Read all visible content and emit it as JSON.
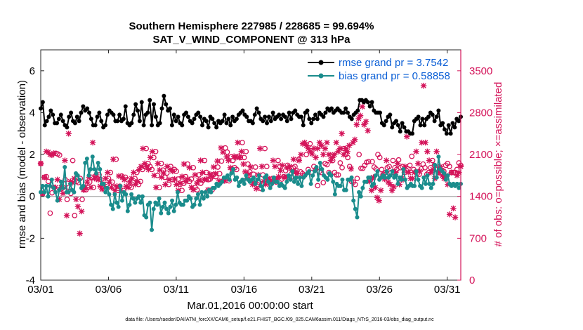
{
  "chart_data": {
    "type": "line",
    "title_line1": "Southern Hemisphere 227985 / 228685 = 99.694%",
    "title_line2": "SAT_V_WIND_COMPONENT @ 313 hPa",
    "xlabel": "Mar.01,2016 00:00:00 start",
    "ylabel_left": "rmse and bias (model - observation)",
    "ylabel_right": "# of obs: o=possible; ×=assimilated",
    "footnote": "data file: /Users/raeder/DAI/ATM_forcXX/CAM6_setup/f.e21.FHIST_BGC.f09_025.CAM6assim.011/Diags_NTrS_2016-03/obs_diag_output.nc",
    "x_ticks": [
      1,
      6,
      11,
      16,
      21,
      26,
      31
    ],
    "x_tick_labels": [
      "03/01",
      "03/06",
      "03/11",
      "03/16",
      "03/21",
      "03/26",
      "03/31"
    ],
    "xlim": [
      1,
      32
    ],
    "ylim_left": [
      -4,
      7
    ],
    "y_ticks_left": [
      "-4",
      "-2",
      "0",
      "2",
      "4",
      "6"
    ],
    "ylim_right": [
      0,
      3850
    ],
    "y_ticks_right": [
      "0",
      "700",
      "1400",
      "2100",
      "2800",
      "3500"
    ],
    "grid": false,
    "legend_position": "top-right",
    "colors": {
      "rmse": "#000000",
      "bias": "#1a8c8c",
      "obs": "#d4145a",
      "legend_text": "#0b5fd6",
      "zero": "#b4b4b4"
    },
    "series": [
      {
        "name": "rmse grand pr = 3.7542",
        "axis": "left",
        "marker": "circle",
        "values": [
          4.2,
          4.5,
          3.4,
          3.6,
          3.8,
          4.1,
          3.9,
          3.5,
          3.5,
          3.7,
          3.9,
          3.6,
          3.4,
          3.3,
          3.8,
          4.0,
          3.6,
          3.5,
          3.8,
          3.6,
          4.0,
          4.3,
          4.1,
          4.2,
          4.0,
          3.7,
          3.4,
          3.4,
          3.8,
          4.0,
          3.6,
          3.3,
          3.4,
          3.9,
          4.1,
          4.0,
          3.9,
          3.6,
          3.6,
          3.9,
          3.6,
          3.7,
          4.3,
          3.5,
          3.4,
          3.5,
          3.9,
          4.4,
          4.1,
          3.6,
          4.5,
          3.4,
          3.9,
          4.0,
          4.6,
          3.4,
          4.4,
          3.8,
          3.4,
          3.5,
          4.2,
          4.8,
          4.4,
          4.1,
          4.2,
          3.4,
          3.9,
          3.6,
          3.8,
          3.5,
          3.4,
          3.9,
          4.0,
          3.8,
          3.6,
          3.5,
          3.7,
          3.9,
          4.0,
          3.8,
          3.4,
          3.7,
          3.6,
          3.3,
          3.8,
          3.7,
          3.5,
          3.3,
          3.6,
          3.5,
          3.6,
          3.9,
          3.5,
          3.7,
          3.4,
          3.8,
          3.6,
          3.7,
          3.9,
          4.0,
          4.1,
          3.9,
          3.8,
          3.6,
          3.6,
          3.5,
          3.9,
          4.2,
          4.0,
          3.7,
          3.6,
          3.8,
          3.5,
          3.8,
          3.6,
          4.0,
          3.7,
          3.8,
          3.9,
          3.7,
          3.9,
          3.8,
          3.6,
          4.0,
          3.7,
          4.0,
          4.1,
          3.9,
          3.8,
          3.8,
          3.4,
          4.0,
          4.1,
          3.7,
          3.5,
          3.7,
          3.9,
          3.7,
          4.0,
          3.9,
          3.8,
          4.0,
          4.2,
          4.1,
          4.2,
          4.0,
          4.1,
          4.2,
          4.1,
          4.0,
          4.0,
          4.2,
          4.0,
          3.8,
          3.7,
          3.9,
          4.0,
          4.1,
          4.6,
          4.6,
          4.5,
          4.6,
          4.5,
          4.3,
          4.5,
          4.1,
          4.0,
          4.0,
          4.0,
          3.5,
          3.4,
          3.6,
          3.8,
          3.9,
          3.3,
          3.5,
          3.6,
          3.4,
          3.1,
          3.5,
          3.3,
          3.1,
          3.1,
          3.0,
          3.0,
          3.6,
          3.7,
          3.8,
          3.4,
          3.7,
          3.4,
          3.7,
          3.8,
          4.0,
          3.9,
          3.6,
          3.8,
          4.1,
          3.4,
          3.5,
          3.2,
          3.0,
          3.4,
          3.0,
          3.5,
          3.3,
          3.7,
          3.6,
          3.8
        ]
      },
      {
        "name": "bias grand pr = 0.58858",
        "axis": "left",
        "marker": "circle",
        "values": [
          0.2,
          0.5,
          0.2,
          0.5,
          0.0,
          0.5,
          0.8,
          0.4,
          0.2,
          -0.2,
          0.3,
          0.7,
          0.4,
          1.4,
          0.2,
          0.2,
          0.6,
          0.3,
          0.2,
          1.1,
          1.0,
          0.8,
          0.4,
          0.5,
          1.6,
          1.8,
          1.0,
          1.3,
          1.9,
          1.3,
          1.1,
          1.6,
          1.3,
          0.6,
          0.6,
          0.2,
          0.4,
          0.1,
          -0.4,
          -0.6,
          0.1,
          -0.3,
          -0.5,
          0.5,
          -0.2,
          0.2,
          0.1,
          -0.7,
          -0.4,
          0.1,
          -0.1,
          -0.3,
          -0.1,
          0.0,
          -0.3,
          0.0,
          -0.9,
          -1.0,
          -0.4,
          -0.3,
          -1.6,
          -0.6,
          -0.3,
          -0.4,
          -0.1,
          -0.8,
          -0.5,
          -0.3,
          -0.6,
          -0.8,
          -0.5,
          -0.2,
          -0.7,
          -0.4,
          0.2,
          -0.3,
          -0.4,
          -0.4,
          -0.2,
          -0.2,
          0.0,
          -0.1,
          -0.5,
          -0.4,
          -0.1,
          0.1,
          -0.4,
          0.2,
          -0.1,
          0.2,
          0.0,
          0.3,
          0.2,
          0.4,
          0.4,
          0.6,
          0.5,
          0.6,
          0.7,
          0.9,
          0.9,
          1.0,
          0.8,
          1.1,
          1.3,
          0.8,
          0.9,
          0.5,
          0.7,
          0.8,
          0.6,
          1.0,
          0.8,
          0.7,
          0.8,
          0.9,
          0.6,
          0.8,
          1.0,
          0.5,
          0.3,
          0.9,
          1.0,
          0.7,
          0.4,
          0.6,
          0.9,
          0.7,
          0.7,
          0.5,
          0.6,
          0.5,
          0.4,
          0.7,
          1.0,
          0.8,
          1.2,
          0.7,
          0.9,
          0.6,
          0.9,
          0.5,
          0.9,
          1.0,
          1.1,
          1.2,
          0.6,
          1.0,
          1.2,
          1.4,
          0.8,
          1.6,
          1.3,
          1.0,
          0.9,
          0.8,
          1.1,
          1.0,
          0.7,
          0.1,
          0.6,
          0.5,
          0.5,
          0.8,
          0.3,
          0.3,
          0.8,
          0.8,
          0.9,
          -0.2,
          -0.6,
          -1.0,
          0.2,
          0.0,
          0.4,
          0.7,
          0.7,
          0.9,
          0.9,
          0.5,
          0.6,
          1.0,
          1.2,
          0.8,
          0.9,
          1.0,
          0.9,
          1.2,
          0.9,
          1.0,
          1.2,
          0.9,
          1.0,
          0.6,
          0.9,
          0.8,
          1.3,
          0.8,
          0.4,
          0.5,
          0.6,
          0.5,
          0.5,
          1.2,
          0.8,
          0.5,
          0.4,
          0.9,
          0.6,
          1.0,
          0.6,
          0.4,
          0.6,
          1.5,
          0.9,
          1.9,
          1.3,
          1.2,
          1.1,
          0.8,
          1.0,
          0.6,
          0.5,
          0.6,
          0.5,
          0.6,
          0.4,
          0.6
        ]
      },
      {
        "name": "possible obs",
        "axis": "right",
        "marker": "circle",
        "values": [
          1950,
          1450,
          1720,
          1730,
          1650,
          1120,
          1460,
          1550,
          2120,
          2110,
          2090,
          1530,
          1550,
          1680,
          1350,
          1550,
          1450,
          2000,
          1080,
          1650,
          1630,
          1700,
          1350,
          1510,
          1510,
          1550,
          1640,
          1720,
          1550,
          1740,
          1700,
          1760,
          1680,
          1570,
          1520,
          1600,
          1700,
          1800,
          1640,
          1550,
          2020,
          1500,
          1570,
          1740,
          1500,
          1720,
          1680,
          1570,
          1550,
          1640,
          1700,
          1800,
          1600,
          1650,
          1850,
          1900,
          2200,
          1950,
          1900,
          1850,
          2050,
          2150,
          1750,
          1550,
          1950,
          1840,
          1720,
          1790,
          1600,
          1900,
          1680,
          1850,
          1820,
          1690,
          1600,
          1500,
          1620,
          1730,
          1940,
          1650,
          1690,
          1880,
          1550,
          1510,
          1760,
          1620,
          1670,
          2000,
          1800,
          1680,
          1690,
          1510,
          1770,
          1730,
          1890,
          1780,
          1990,
          1660,
          2210,
          2140,
          1660,
          2060,
          2000,
          1880,
          1850,
          2070,
          2050,
          2300,
          2050,
          2150,
          1940,
          1810,
          1700,
          1770,
          1890,
          1600,
          1630,
          1530,
          1760,
          2200,
          1900,
          1650,
          1600,
          1700,
          1690,
          1640,
          2000,
          1900,
          1690,
          1730,
          1830,
          1920,
          1720,
          1720,
          1880,
          1900,
          1830,
          2020,
          1810,
          1780,
          1750,
          2100,
          1850,
          2280,
          1800,
          1900,
          1850,
          1580,
          1820,
          1800,
          1630,
          1950,
          1930,
          1800,
          2080,
          2000,
          1800,
          1760,
          1760,
          1960,
          1880,
          2200,
          2100,
          2050,
          1900,
          1650,
          1640,
          1600,
          1700,
          2100,
          1870,
          1870,
          1920,
          1970,
          1980,
          1680,
          1980,
          1890,
          1860,
          2100,
          2050,
          1850,
          1770,
          1800,
          1880,
          1900,
          1800,
          2000,
          1880,
          1850,
          2010,
          1880,
          1900,
          1800,
          1840,
          1860,
          1920,
          2070,
          1850,
          1810,
          1790,
          1770,
          1860,
          1940,
          1880,
          1770,
          1800,
          1880,
          2000,
          1920,
          1850,
          1800,
          1860,
          1840,
          1820,
          1920,
          1950,
          1900,
          1800,
          1800,
          1800,
          1850,
          1960,
          1920
        ]
      },
      {
        "name": "assimilated obs",
        "axis": "right",
        "marker": "x",
        "values": [
          1950,
          1450,
          1720,
          2150,
          2140,
          2100,
          2090,
          2120,
          1550,
          1680,
          1350,
          1550,
          1450,
          2000,
          1080,
          2450,
          1650,
          1630,
          1700,
          1350,
          1230,
          780,
          1150,
          1510,
          1550,
          1640,
          1720,
          1550,
          2300,
          1700,
          1760,
          1680,
          1570,
          1520,
          1600,
          1700,
          1800,
          1640,
          1550,
          2020,
          1500,
          1570,
          1740,
          1500,
          1720,
          1680,
          1570,
          1550,
          1640,
          1700,
          1800,
          1600,
          1650,
          1850,
          1900,
          2200,
          1950,
          1900,
          1850,
          2050,
          2150,
          1750,
          1550,
          1950,
          1840,
          1720,
          1790,
          1600,
          1900,
          1680,
          1850,
          1820,
          1690,
          1600,
          1500,
          1620,
          1730,
          1940,
          1650,
          1690,
          1880,
          1550,
          1510,
          1760,
          1620,
          1670,
          2000,
          1800,
          1680,
          1690,
          1510,
          1770,
          1730,
          1890,
          1780,
          1990,
          1660,
          2210,
          2140,
          1660,
          2060,
          2000,
          1880,
          1850,
          2070,
          2050,
          2300,
          2050,
          2150,
          1940,
          1810,
          1700,
          1770,
          1890,
          1600,
          1630,
          1530,
          1760,
          2200,
          1900,
          1650,
          1600,
          1700,
          1690,
          1640,
          2000,
          1900,
          1690,
          1730,
          1830,
          1920,
          1720,
          1720,
          1880,
          1900,
          1830,
          2020,
          1810,
          1780,
          2000,
          2100,
          2280,
          2300,
          2250,
          2200,
          2150,
          2110,
          2200,
          2050,
          2200,
          2300,
          2250,
          2100,
          2200,
          2300,
          2100,
          2000,
          2050,
          2100,
          2300,
          2150,
          2200,
          2450,
          2100,
          2200,
          2150,
          2250,
          1860,
          2300,
          2350,
          2600,
          2700,
          2750,
          2900,
          2600,
          2650,
          2500,
          1650,
          1500,
          1720,
          1550,
          1380,
          1330,
          1500,
          1760,
          1690,
          2000,
          1640,
          1600,
          1500,
          1560,
          1800,
          1950,
          1600,
          1700,
          1680,
          1900,
          2400,
          1800,
          1700,
          1700,
          1800,
          2150,
          1950,
          1820,
          2300,
          3250,
          2300,
          2150,
          2000,
          1800,
          1850,
          1700,
          2150,
          1800,
          1900,
          1750,
          1700,
          1750,
          1600,
          1100,
          1800,
          1200,
          1050,
          1750,
          1800,
          1900
        ]
      }
    ]
  }
}
